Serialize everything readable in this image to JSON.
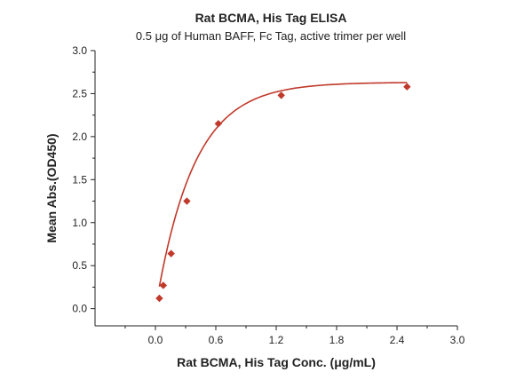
{
  "chart_data": {
    "type": "scatter",
    "title": "Rat BCMA, His Tag ELISA",
    "subtitle": "0.5 μg of Human BAFF, Fc Tag, active trimer per well",
    "xlabel": "Rat BCMA, His Tag Conc. (μg/mL)",
    "ylabel": "Mean Abs.(OD450)",
    "xlim": [
      -0.6,
      3.0
    ],
    "ylim": [
      -0.2,
      3.0
    ],
    "x_ticks": [
      0.0,
      0.6,
      1.2,
      1.8,
      2.4,
      3.0
    ],
    "x_tick_labels": [
      "0.0",
      "0.6",
      "1.2",
      "1.8",
      "2.4",
      "3.0"
    ],
    "y_ticks": [
      0.0,
      0.5,
      1.0,
      1.5,
      2.0,
      2.5,
      3.0
    ],
    "y_tick_labels": [
      "0.0",
      "0.5",
      "1.0",
      "1.5",
      "2.0",
      "2.5",
      "3.0"
    ],
    "grid": false,
    "legend": "none",
    "marker": "diamond",
    "color": "#c0392b",
    "fit": "smooth fitted curve",
    "series": [
      {
        "x": [
          0.039,
          0.078,
          0.156,
          0.3125,
          0.625,
          1.25,
          2.5
        ],
        "y": [
          0.12,
          0.27,
          0.64,
          1.25,
          2.15,
          2.48,
          2.58
        ]
      }
    ]
  }
}
